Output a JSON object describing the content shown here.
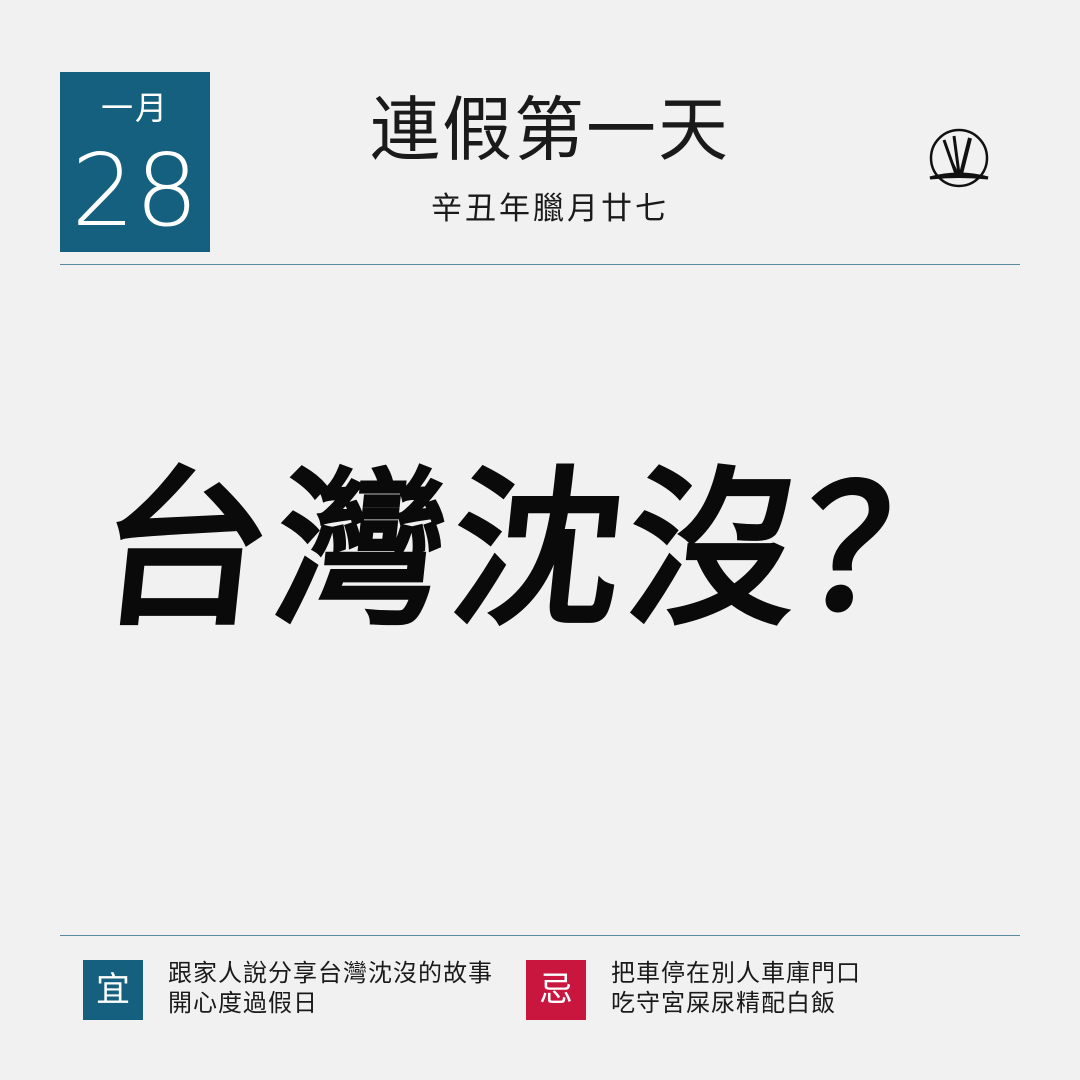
{
  "colors": {
    "accent": "#14607e",
    "danger": "#c8163f",
    "rule": "#5a8aa0"
  },
  "date": {
    "month": "一月",
    "day": "28"
  },
  "header": {
    "title": "連假第一天",
    "lunar_date": "辛丑年臘月廿七",
    "logo_icon": "brush-emblem-icon"
  },
  "main": {
    "hero_text": "台灣沈沒？"
  },
  "footer": {
    "do": {
      "tag": "宜",
      "lines": [
        "跟家人說分享台灣沈沒的故事",
        "開心度過假日"
      ]
    },
    "dont": {
      "tag": "忌",
      "lines": [
        "把車停在別人車庫門口",
        "吃守宮屎尿精配白飯"
      ]
    }
  }
}
